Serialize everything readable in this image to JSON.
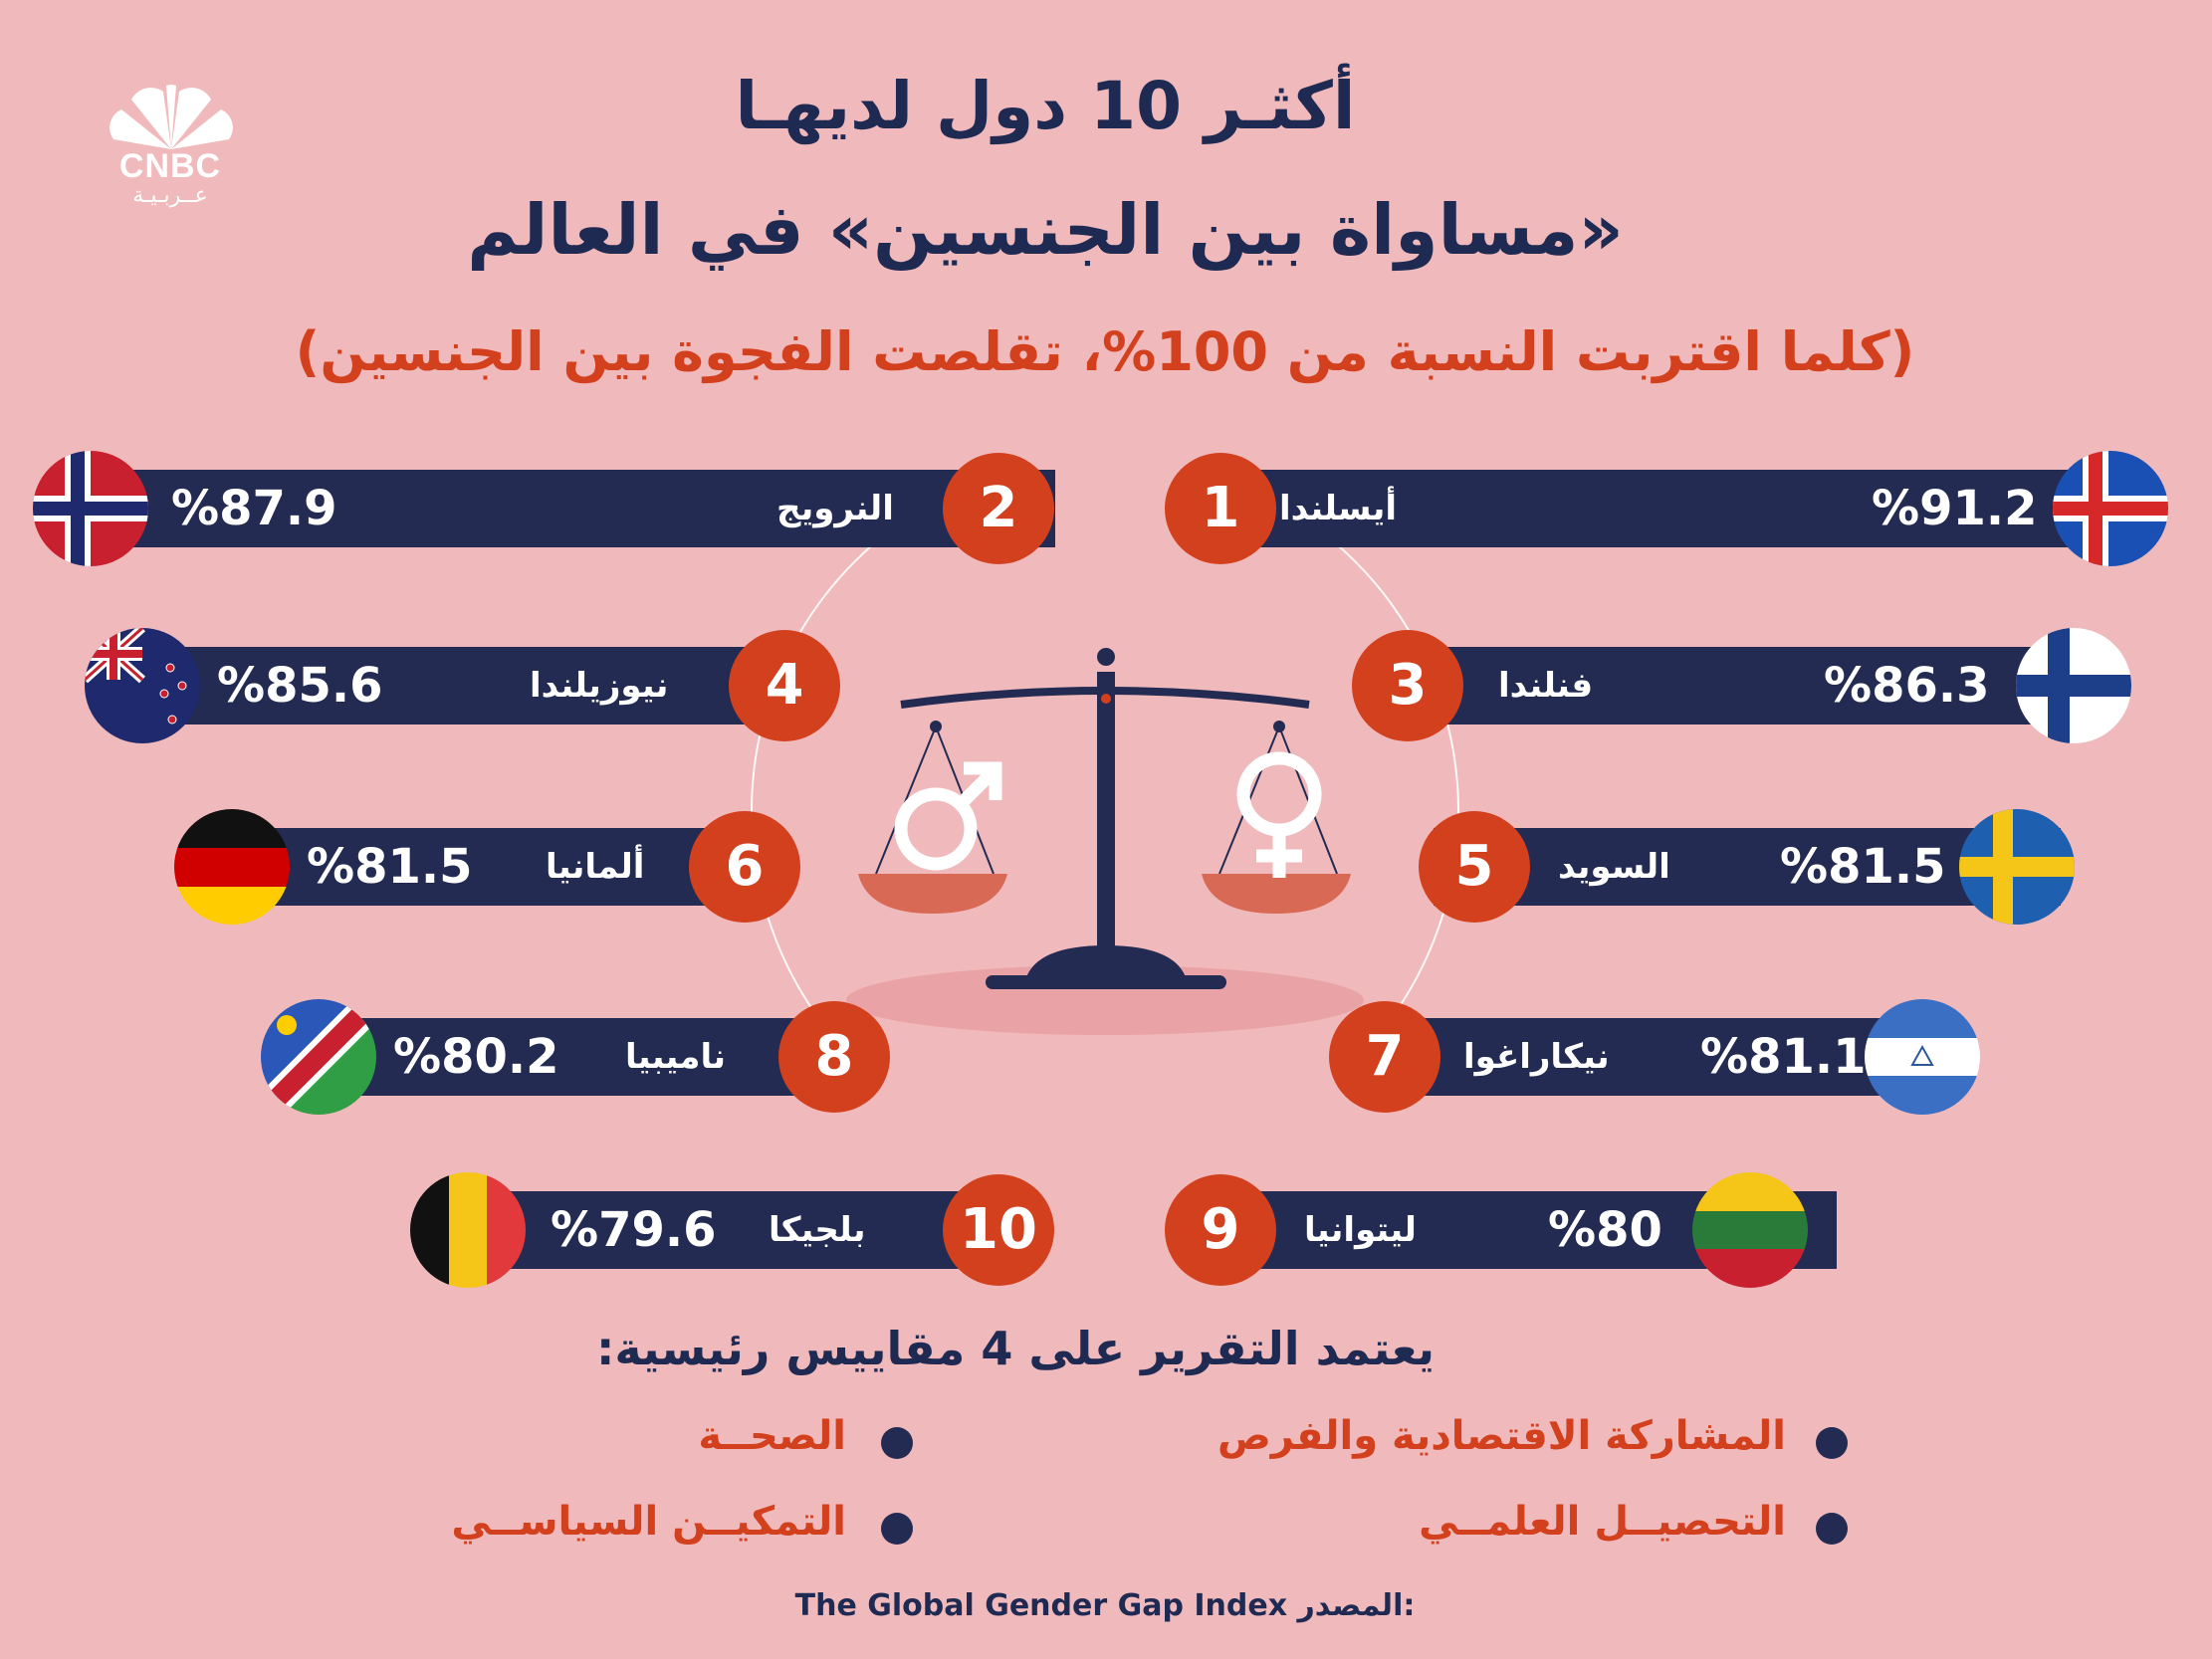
{
  "header": {
    "title_line1": "أكثـر 10 دول لديهـا",
    "title_line2": "«مساواة بين الجنسين» في العالم",
    "subtitle": "(كلما اقتربت النسبة من 100%، تقلصت الفجوة بين الجنسين)"
  },
  "logo": {
    "brand": "CNBC",
    "sub": "عــربـيـة"
  },
  "chart_data": {
    "type": "bar",
    "title": "أكثـر 10 دول لديهـا «مساواة بين الجنسين» في العالم",
    "subtitle": "(كلما اقتربت النسبة من 100%، تقلصت الفجوة بين الجنسين)",
    "categories": [
      "أيسلندا",
      "النرويج",
      "فنلندا",
      "نيوزيلندا",
      "السويد",
      "ألمانيا",
      "نيكاراغوا",
      "ناميبيا",
      "ليتوانيا",
      "بلجيكا"
    ],
    "ranks": [
      "1",
      "2",
      "3",
      "4",
      "5",
      "6",
      "7",
      "8",
      "9",
      "10"
    ],
    "values": [
      91.2,
      87.9,
      86.3,
      85.6,
      81.5,
      81.5,
      81.1,
      80.2,
      80,
      79.6
    ],
    "value_labels": [
      "%91.2",
      "%87.9",
      "%86.3",
      "%85.6",
      "%81.5",
      "%81.5",
      "%81.1",
      "%80.2",
      "%80",
      "%79.6"
    ],
    "flags": [
      "iceland-flag",
      "norway-flag",
      "finland-flag",
      "new-zealand-flag",
      "sweden-flag",
      "germany-flag",
      "nicaragua-flag",
      "namibia-flag",
      "lithuania-flag",
      "belgium-flag"
    ],
    "unit": "%"
  },
  "criteria": {
    "title": "يعتمد التقرير على 4 مقاييس رئيسية:",
    "items": [
      "المشاركة الاقتصادية والفرص",
      "الصحــة",
      "التحصيــل العلمــي",
      "التمكيــن السياســي"
    ]
  },
  "source": {
    "label": "المصدر:",
    "value": "The Global Gender Gap Index"
  },
  "colors": {
    "background": "#f0b9bb",
    "navy": "#232b52",
    "accent": "#d3401e"
  },
  "icons": [
    "cnbc-peacock-logo",
    "balance-scale-icon",
    "male-symbol-icon",
    "female-symbol-icon"
  ]
}
